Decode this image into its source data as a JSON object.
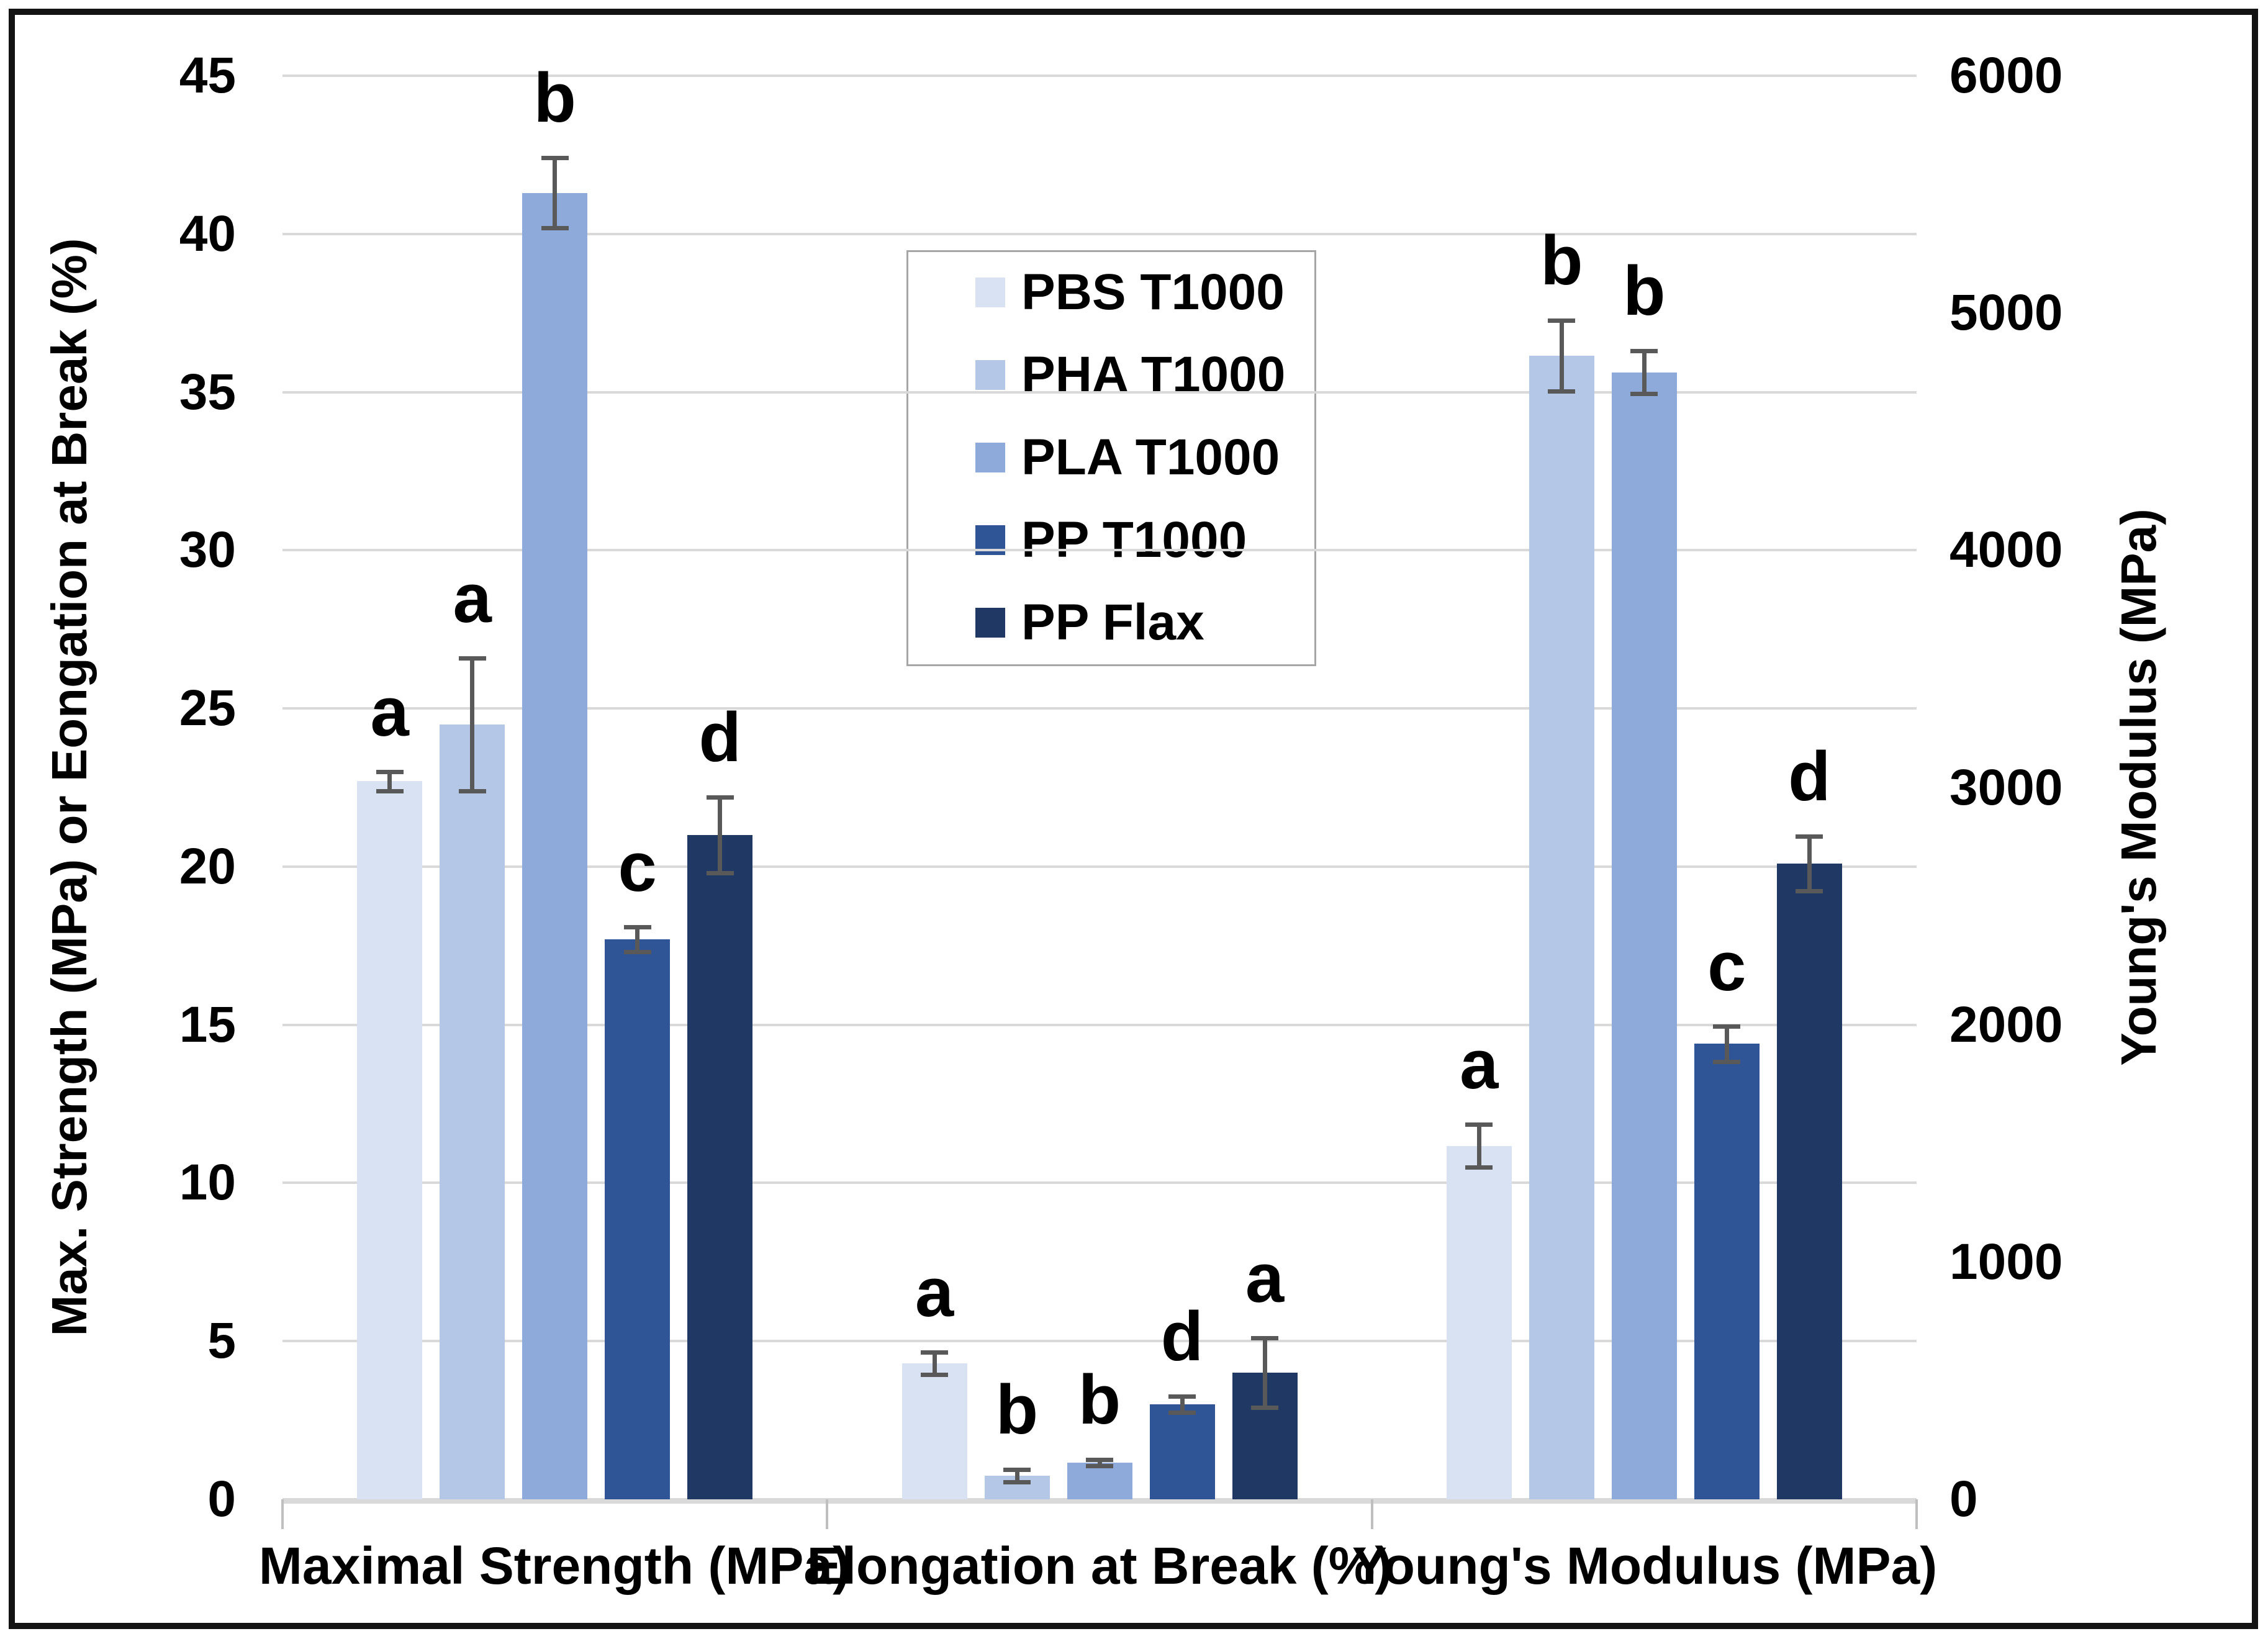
{
  "figure": {
    "kind": "grouped bar chart with dual y-axes, error bars and significance letters",
    "background": "#ffffff",
    "frame_color": "#131313",
    "gridline_color": "#d9d9d9",
    "error_bar_color": "#595959",
    "legend_border_color": "#a6a6a6"
  },
  "chart_data": {
    "type": "bar",
    "title": "",
    "categories": [
      "Maximal Strength (MPa)",
      "Elongation at Break (%)",
      "Young's Modulus (MPa)"
    ],
    "category_axis": [
      "left",
      "left",
      "right"
    ],
    "left_axis": {
      "label": "Max. Strength (MPa) or Eongation at Break (%)",
      "min": 0,
      "max": 45,
      "step": 5,
      "ticks": [
        0,
        5,
        10,
        15,
        20,
        25,
        30,
        35,
        40,
        45
      ]
    },
    "right_axis": {
      "label": "Young's Modulus (MPa)",
      "min": 0,
      "max": 6000,
      "step": 1000,
      "ticks": [
        0,
        1000,
        2000,
        3000,
        4000,
        5000,
        6000
      ]
    },
    "grid": true,
    "legend_position": "inside-top-center",
    "series": [
      {
        "name": "PBS T1000",
        "color": "#d9e2f3",
        "values": [
          22.7,
          4.3,
          1490
        ],
        "errors": [
          0.3,
          0.35,
          90
        ],
        "letters": [
          "a",
          "a",
          "a"
        ]
      },
      {
        "name": "PHA T1000",
        "color": "#b4c7e7",
        "values": [
          24.5,
          0.75,
          4820
        ],
        "errors": [
          2.1,
          0.2,
          150
        ],
        "letters": [
          "a",
          "b",
          "b"
        ]
      },
      {
        "name": "PLA T1000",
        "color": "#8eaadb",
        "values": [
          41.3,
          1.15,
          4750
        ],
        "errors": [
          1.1,
          0.1,
          90
        ],
        "letters": [
          "b",
          "b",
          "b"
        ]
      },
      {
        "name": "PP T1000",
        "color": "#2f5597",
        "values": [
          17.7,
          3.0,
          1920
        ],
        "errors": [
          0.4,
          0.25,
          75
        ],
        "letters": [
          "c",
          "d",
          "c"
        ]
      },
      {
        "name": "PP Flax",
        "color": "#1f3864",
        "values": [
          21.0,
          4.0,
          2680
        ],
        "errors": [
          1.2,
          1.1,
          115
        ],
        "letters": [
          "d",
          "a",
          "d"
        ]
      }
    ]
  }
}
